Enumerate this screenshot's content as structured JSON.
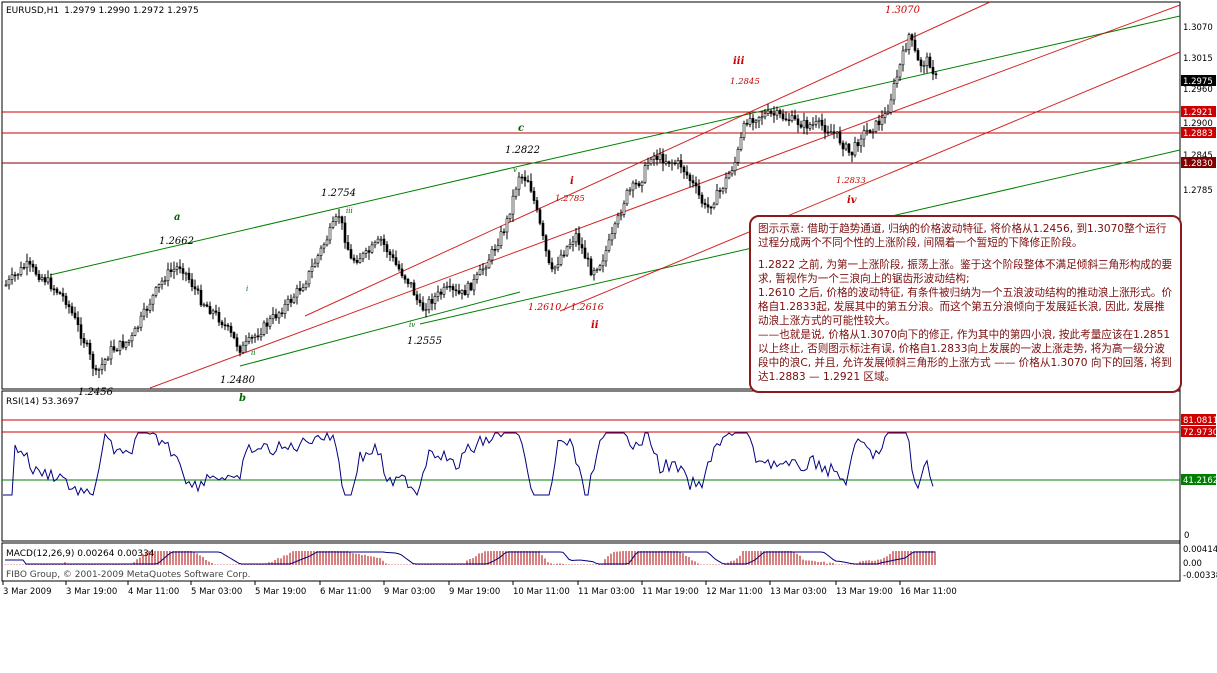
{
  "header": {
    "symbol": "EURUSD,H1",
    "ohlc": "1.2979 1.2990 1.2972 1.2975"
  },
  "price_axis": {
    "ticks": [
      "1.3070",
      "1.3015",
      "1.2960",
      "1.2900",
      "1.2845",
      "1.2785"
    ],
    "badges": [
      {
        "text": "1.2975",
        "bg": "#000000",
        "fg": "#ffffff"
      },
      {
        "text": "1.2921",
        "bg": "#cc0000",
        "fg": "#ffffff"
      },
      {
        "text": "1.2883",
        "bg": "#cc0000",
        "fg": "#ffffff"
      },
      {
        "text": "1.2830",
        "bg": "#800000",
        "fg": "#ffffff"
      }
    ]
  },
  "labels": {
    "p13070": "1.3070",
    "iii": "iii",
    "p12845": "1.2845",
    "c": "c",
    "p12822": "1.2822",
    "i": "i",
    "p12785": "1.2785",
    "p12754": "1.2754",
    "a": "a",
    "p12662": "1.2662",
    "iv": "iv",
    "p12833": "1.2833",
    "p12610": "1.2610  /  1.2616",
    "ii": "ii",
    "p12555": "1.2555",
    "p12480": "1.2480",
    "b": "b",
    "p12456": "1.2456",
    "i_small": "i",
    "ii_small": "ii",
    "iii_small": "iii",
    "iv_small": "iv",
    "v_small": "v"
  },
  "rsi": {
    "title": "RSI(14) 53.3697",
    "badges": [
      {
        "text": "81.0811",
        "bg": "#cc0000"
      },
      {
        "text": "72.9730",
        "bg": "#cc0000"
      },
      {
        "text": "41.2162",
        "bg": "#008000"
      }
    ],
    "zero": "0"
  },
  "macd": {
    "title": "MACD(12,26,9) 0.00264 0.00334",
    "ticks": [
      "0.00414",
      "0.00",
      "-0.00338"
    ],
    "copyright": "FIBO Group, © 2001-2009 MetaQuotes Software Corp."
  },
  "time_axis": [
    "3 Mar 2009",
    "3 Mar 19:00",
    "4 Mar 11:00",
    "5 Mar 03:00",
    "5 Mar 19:00",
    "6 Mar 11:00",
    "9 Mar 03:00",
    "9 Mar 19:00",
    "10 Mar 11:00",
    "11 Mar 03:00",
    "11 Mar 19:00",
    "12 Mar 11:00",
    "13 Mar 03:00",
    "13 Mar 19:00",
    "16 Mar 11:00"
  ],
  "note": {
    "p1": "图示示意: 借助于趋势通道, 归纳的价格波动特征, 将价格从1.2456, 到1.3070整个运行过程分成两个不同个性的上涨阶段, 间隔着一个暂短的下降修正阶段。",
    "p2": "1.2822 之前, 为第一上涨阶段, 振荡上涨。鉴于这个阶段整体不满足倾斜三角形构成的要求, 暂视作为一个三浪向上的锯齿形波动结构;",
    "p3": "1.2610 之后, 价格的波动特征, 有条件被归纳为一个五浪波动结构的推动浪上涨形式。价格自1.2833起, 发展其中的第五分浪。而这个第五分浪倾向于发展延长浪, 因此, 发展推动浪上涨方式的可能性较大。",
    "p4": "——也就是说, 价格从1.3070向下的修正, 作为其中的第四小浪, 按此考量应该在1.2851以上终止, 否则图示标注有误, 价格自1.2833向上发展的一波上涨走势, 将为高一级分波段中的浪C, 并且, 允许发展倾斜三角形的上涨方式 —— 价格从1.3070 向下的回落, 将到达1.2883 — 1.2921 区域。"
  },
  "colors": {
    "up": "#000000",
    "green": "#008000",
    "red": "#cc0000",
    "darkred": "#800000",
    "rsi": "#000080",
    "macd": "#b00000"
  }
}
